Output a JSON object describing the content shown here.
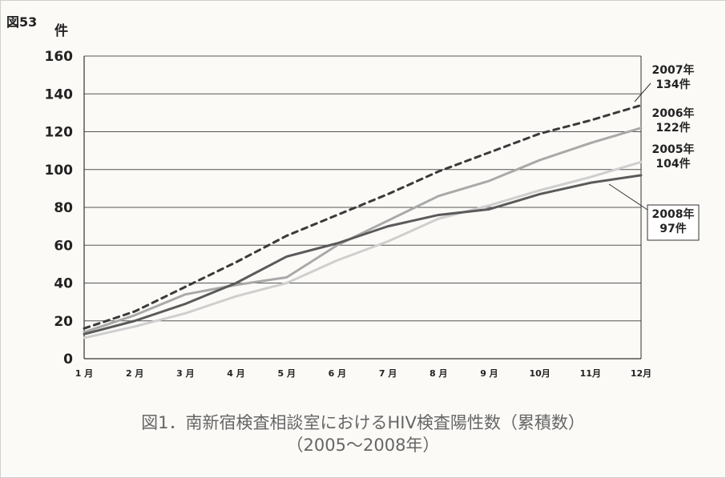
{
  "figure_label": "図53",
  "caption": {
    "line1": "図1．南新宿検査相談室におけるHIV検査陽性数（累積数）",
    "line2": "（2005～2008年）"
  },
  "colors": {
    "s2007": "#3a3a3a",
    "s2006": "#a9a9a9",
    "s2005": "#cfcfcf",
    "s2008": "#5a5a5a",
    "grid": "#555555",
    "axis_text": "#222222"
  },
  "chart_data": {
    "type": "line",
    "title": "",
    "ylabel": "件",
    "xlabel": "",
    "categories": [
      "1 月",
      "2 月",
      "3 月",
      "4 月",
      "5 月",
      "6 月",
      "7 月",
      "8 月",
      "9 月",
      "10月",
      "11月",
      "12月"
    ],
    "ylim": [
      0,
      160
    ],
    "yticks": [
      0,
      20,
      40,
      60,
      80,
      100,
      120,
      140,
      160
    ],
    "grid": true,
    "series": [
      {
        "name": "2007年",
        "total_label": "134件",
        "style": "dashed",
        "values": [
          16,
          25,
          38,
          51,
          65,
          76,
          87,
          99,
          109,
          119,
          126,
          134
        ]
      },
      {
        "name": "2006年",
        "total_label": "122件",
        "style": "solid",
        "values": [
          14,
          23,
          34,
          39,
          43,
          60,
          73,
          86,
          94,
          105,
          114,
          122
        ]
      },
      {
        "name": "2005年",
        "total_label": "104件",
        "style": "solid",
        "values": [
          11,
          17,
          24,
          33,
          40,
          52,
          62,
          74,
          81,
          89,
          96,
          104
        ]
      },
      {
        "name": "2008年",
        "total_label": "97件",
        "style": "solid",
        "values": [
          13,
          20,
          29,
          40,
          54,
          61,
          70,
          76,
          79,
          87,
          93,
          97
        ]
      }
    ]
  }
}
